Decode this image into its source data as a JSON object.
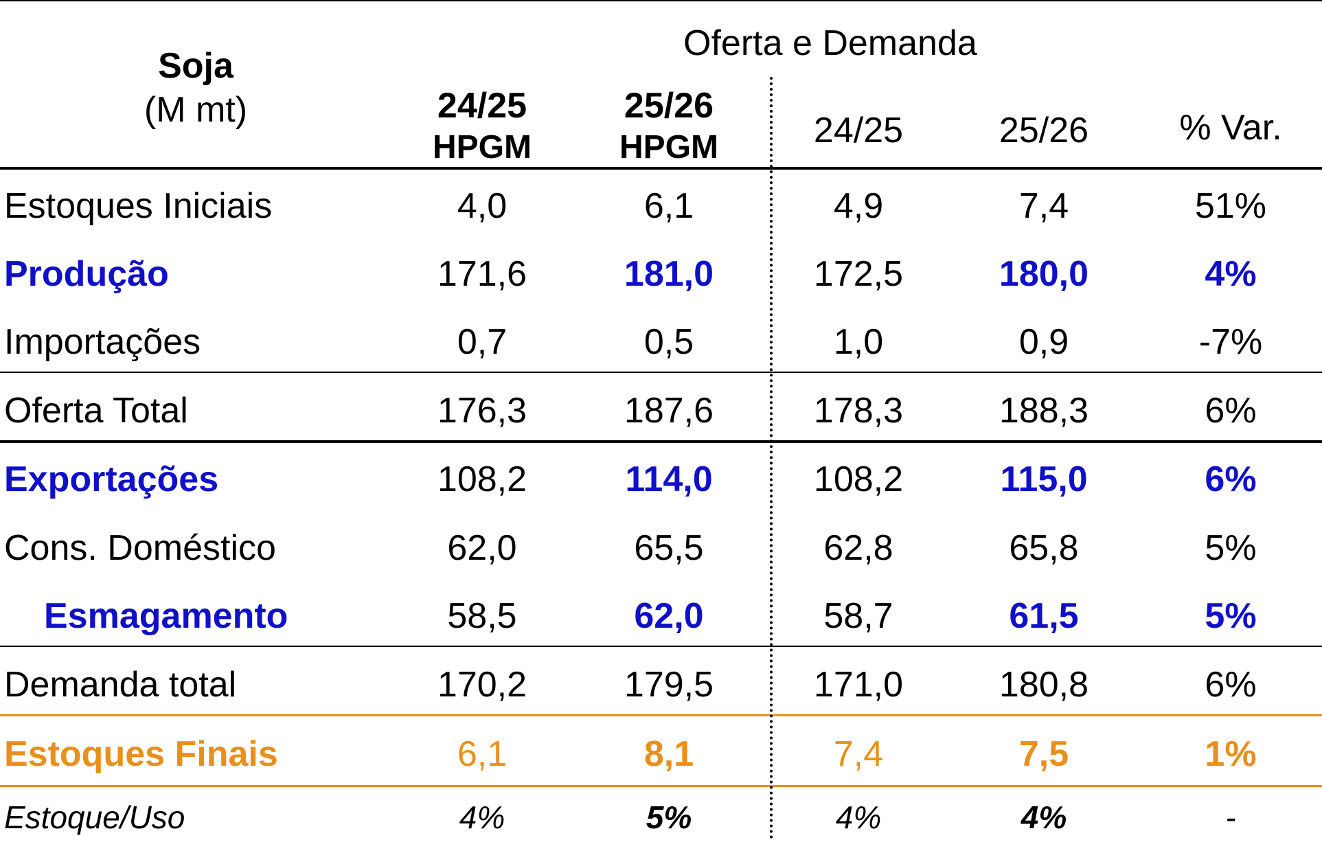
{
  "header": {
    "commodity": "Soja",
    "unit": "(M mt)",
    "group_title": "Oferta e Demanda",
    "columns": [
      {
        "line1": "24/25",
        "line2": "HPGM",
        "bold": true
      },
      {
        "line1": "25/26",
        "line2": "HPGM",
        "bold": true
      },
      {
        "line1": "24/25",
        "line2": "",
        "bold": false
      },
      {
        "line1": "25/26",
        "line2": "",
        "bold": false
      },
      {
        "line1": "% Var.",
        "line2": "",
        "bold": false
      }
    ]
  },
  "rows": [
    {
      "label": "Estoques Iniciais",
      "values": [
        "4,0",
        "6,1",
        "4,9",
        "7,4",
        "51%"
      ]
    },
    {
      "label": "Produção",
      "values": [
        "171,6",
        "181,0",
        "172,5",
        "180,0",
        "4%"
      ]
    },
    {
      "label": "Importações",
      "values": [
        "0,7",
        "0,5",
        "1,0",
        "0,9",
        "-7%"
      ]
    },
    {
      "label": "Oferta Total",
      "values": [
        "176,3",
        "187,6",
        "178,3",
        "188,3",
        "6%"
      ]
    },
    {
      "label": "Exportações",
      "values": [
        "108,2",
        "114,0",
        "108,2",
        "115,0",
        "6%"
      ]
    },
    {
      "label": "Cons. Doméstico",
      "values": [
        "62,0",
        "65,5",
        "62,8",
        "65,8",
        "5%"
      ]
    },
    {
      "label": "Esmagamento",
      "values": [
        "58,5",
        "62,0",
        "58,7",
        "61,5",
        "5%"
      ]
    },
    {
      "label": "Demanda total",
      "values": [
        "170,2",
        "179,5",
        "171,0",
        "180,8",
        "6%"
      ]
    },
    {
      "label": "Estoques Finais",
      "values": [
        "6,1",
        "8,1",
        "7,4",
        "7,5",
        "1%"
      ]
    },
    {
      "label": "Estoque/Uso",
      "values": [
        "4%",
        "5%",
        "4%",
        "4%",
        "-"
      ]
    }
  ],
  "colors": {
    "highlight_blue": "#1010c8",
    "highlight_orange": "#e8901a",
    "text": "#000000"
  }
}
